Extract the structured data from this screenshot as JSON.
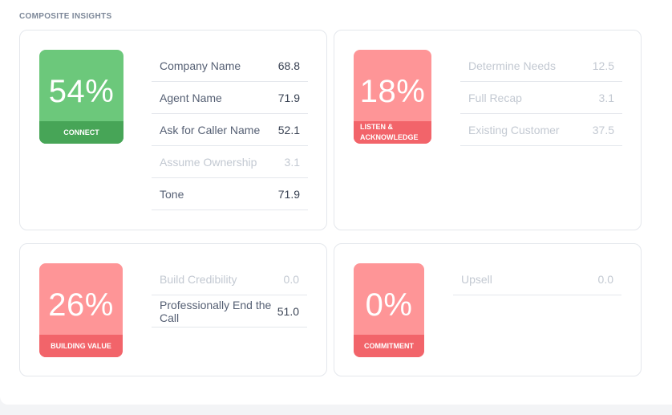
{
  "section_title": "COMPOSITE INSIGHTS",
  "colors": {
    "green": "#6cc87b",
    "green_dark": "#47a557",
    "red": "#fe9597",
    "red_dark": "#f2646a",
    "text": "#566074",
    "text_dim": "#c3c9d2"
  },
  "cards": [
    {
      "percent": "54%",
      "label": "CONNECT",
      "status": "green",
      "metrics": [
        {
          "name": "Company Name",
          "value": "68.8",
          "dim": false
        },
        {
          "name": "Agent Name",
          "value": "71.9",
          "dim": false
        },
        {
          "name": "Ask for Caller Name",
          "value": "52.1",
          "dim": false
        },
        {
          "name": "Assume Ownership",
          "value": "3.1",
          "dim": true
        },
        {
          "name": "Tone",
          "value": "71.9",
          "dim": false
        }
      ]
    },
    {
      "percent": "18%",
      "label": "LISTEN & ACKNOWLEDGE",
      "status": "red",
      "metrics": [
        {
          "name": "Determine Needs",
          "value": "12.5",
          "dim": true
        },
        {
          "name": "Full Recap",
          "value": "3.1",
          "dim": true
        },
        {
          "name": "Existing Customer",
          "value": "37.5",
          "dim": true
        }
      ]
    },
    {
      "percent": "26%",
      "label": "BUILDING VALUE",
      "status": "red",
      "metrics": [
        {
          "name": "Build Credibility",
          "value": "0.0",
          "dim": true
        },
        {
          "name": "Professionally End the Call",
          "value": "51.0",
          "dim": false
        }
      ]
    },
    {
      "percent": "0%",
      "label": "COMMITMENT",
      "status": "red",
      "metrics": [
        {
          "name": "Upsell",
          "value": "0.0",
          "dim": true
        }
      ]
    }
  ]
}
